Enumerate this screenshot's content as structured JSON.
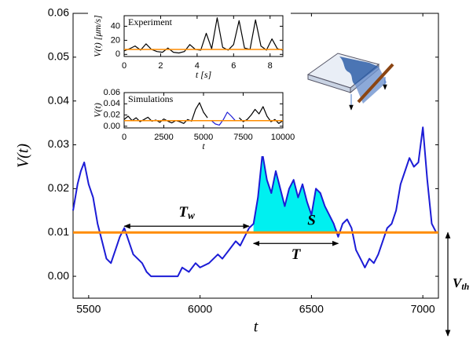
{
  "chart_data": [
    {
      "type": "line",
      "xlabel": "t",
      "ylabel": "V(t)",
      "xlim": [
        5430,
        7070
      ],
      "ylim": [
        -0.005,
        0.06
      ],
      "xticks": [
        5500,
        6000,
        6500,
        7000
      ],
      "yticks": [
        {
          "value": 0,
          "label": "0.00"
        },
        {
          "value": 0.01,
          "label": "0.01"
        },
        {
          "value": 0.02,
          "label": "0.02"
        },
        {
          "value": 0.03,
          "label": "0.03"
        },
        {
          "value": 0.04,
          "label": "0.04"
        },
        {
          "value": 0.05,
          "label": "0.05"
        },
        {
          "value": 0.06,
          "label": "0.06"
        }
      ],
      "x": [
        5430,
        5450,
        5465,
        5480,
        5500,
        5520,
        5540,
        5560,
        5580,
        5600,
        5620,
        5640,
        5660,
        5680,
        5700,
        5720,
        5740,
        5760,
        5780,
        5800,
        5850,
        5900,
        5920,
        5950,
        5980,
        6000,
        6040,
        6080,
        6100,
        6130,
        6160,
        6180,
        6200,
        6220,
        6240,
        6260,
        6280,
        6300,
        6320,
        6340,
        6360,
        6380,
        6400,
        6420,
        6440,
        6460,
        6480,
        6500,
        6520,
        6540,
        6560,
        6580,
        6600,
        6620,
        6640,
        6660,
        6680,
        6700,
        6720,
        6740,
        6760,
        6780,
        6800,
        6820,
        6840,
        6860,
        6880,
        6900,
        6920,
        6940,
        6960,
        6980,
        7000,
        7020,
        7040,
        7060
      ],
      "series": [
        {
          "color": "#1c1cd6",
          "values": [
            0.015,
            0.021,
            0.024,
            0.026,
            0.021,
            0.018,
            0.012,
            0.008,
            0.004,
            0.003,
            0.006,
            0.009,
            0.011,
            0.008,
            0.005,
            0.004,
            0.003,
            0.001,
            0,
            0,
            0,
            0,
            0.002,
            0.001,
            0.003,
            0.002,
            0.003,
            0.005,
            0.004,
            0.006,
            0.008,
            0.007,
            0.009,
            0.011,
            0.012,
            0.018,
            0.028,
            0.022,
            0.019,
            0.024,
            0.02,
            0.016,
            0.02,
            0.022,
            0.018,
            0.021,
            0.017,
            0.014,
            0.02,
            0.019,
            0.016,
            0.014,
            0.012,
            0.009,
            0.012,
            0.013,
            0.011,
            0.006,
            0.004,
            0.002,
            0.004,
            0.003,
            0.005,
            0.008,
            0.011,
            0.012,
            0.015,
            0.021,
            0.024,
            0.027,
            0.025,
            0.026,
            0.034,
            0.022,
            0.012,
            0.01
          ]
        }
      ],
      "threshold": {
        "value": 0.01,
        "color": "#ff8c00",
        "label": {
          "text": "V",
          "sub": "th"
        }
      },
      "shaded": {
        "x_range": [
          6240,
          6620
        ],
        "color": "#00f0f0",
        "label": "S"
      },
      "annotations": [
        {
          "label": {
            "text": "T",
            "sub": "w"
          },
          "x_range": [
            5660,
            6220
          ],
          "side": "above"
        },
        {
          "label": {
            "text": "T"
          },
          "x_range": [
            6240,
            6620
          ],
          "side": "below"
        }
      ]
    },
    {
      "type": "line",
      "title": "Experiment",
      "xlabel": "t [s]",
      "ylabel": "V(t) [μm/s]",
      "xlim": [
        0,
        8.7
      ],
      "ylim": [
        -3,
        55
      ],
      "xticks": [
        0,
        2,
        4,
        6,
        8
      ],
      "yticks": [
        0,
        20,
        40
      ],
      "x": [
        0,
        0.3,
        0.6,
        0.9,
        1.2,
        1.5,
        1.8,
        2.1,
        2.4,
        2.7,
        3.0,
        3.3,
        3.6,
        3.9,
        4.2,
        4.5,
        4.8,
        5.1,
        5.4,
        5.7,
        6.0,
        6.3,
        6.6,
        6.9,
        7.2,
        7.5,
        7.8,
        8.1,
        8.4,
        8.7
      ],
      "series": [
        {
          "color": "#000000",
          "values": [
            5,
            8,
            12,
            6,
            15,
            7,
            4,
            3,
            9,
            3,
            2,
            4,
            14,
            7,
            6,
            30,
            8,
            52,
            10,
            6,
            14,
            48,
            9,
            7,
            49,
            12,
            6,
            22,
            8,
            6
          ]
        }
      ],
      "threshold": {
        "value": 7,
        "color": "#ff8c00"
      }
    },
    {
      "type": "line",
      "title": "Simulations",
      "xlabel": "t",
      "ylabel": "V(t)",
      "xlim": [
        0,
        10000
      ],
      "ylim": [
        -0.003,
        0.06
      ],
      "xticks": [
        0,
        2500,
        5000,
        7500,
        10000
      ],
      "yticks": [
        {
          "value": 0,
          "label": "0.00"
        },
        {
          "value": 0.02,
          "label": "0.02"
        },
        {
          "value": 0.04,
          "label": "0.04"
        },
        {
          "value": 0.06,
          "label": "0.06"
        }
      ],
      "x": [
        0,
        250,
        500,
        750,
        1000,
        1250,
        1500,
        1750,
        2000,
        2250,
        2500,
        2750,
        3000,
        3250,
        3500,
        3750,
        4000,
        4250,
        4500,
        4750,
        5000,
        5250,
        5500,
        5750,
        6000,
        6250,
        6500,
        6750,
        7000,
        7250,
        7500,
        7750,
        8000,
        8250,
        8500,
        8750,
        9000,
        9250,
        9500,
        9750,
        10000
      ],
      "series": [
        {
          "color": "#000000",
          "values": [
            0.012,
            0.018,
            0.01,
            0.015,
            0.008,
            0.012,
            0.016,
            0.009,
            0.011,
            0.007,
            0.013,
            0.009,
            0.006,
            0.01,
            0.008,
            0.005,
            0.012,
            0.009,
            0.03,
            0.042,
            0.025,
            0.015,
            null,
            null,
            null,
            null,
            null,
            null,
            null,
            0.015,
            0.008,
            0.012,
            0.02,
            0.03,
            0.022,
            0.035,
            0.018,
            0.008,
            0.012,
            0.005,
            0.01
          ]
        },
        {
          "color": "#1c1cd6",
          "values": [
            null,
            null,
            null,
            null,
            null,
            null,
            null,
            null,
            null,
            null,
            null,
            null,
            null,
            null,
            null,
            null,
            null,
            null,
            null,
            null,
            null,
            null,
            0.01,
            0.004,
            0.002,
            0.012,
            0.025,
            0.018,
            0.01,
            null,
            null,
            null,
            null,
            null,
            null,
            null,
            null,
            null,
            null,
            null,
            null
          ]
        }
      ],
      "threshold": {
        "value": 0.01,
        "color": "#ff8c00"
      }
    }
  ]
}
